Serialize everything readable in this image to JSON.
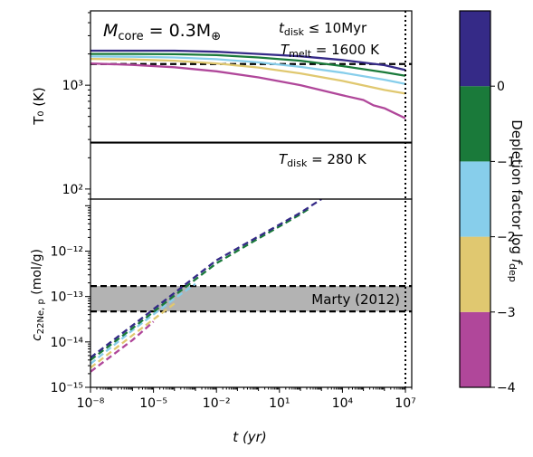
{
  "chart_data": [
    {
      "type": "line",
      "panel": "top",
      "ylabel": "T₀ (K)",
      "yscale": "log",
      "ylim": [
        80,
        5200
      ],
      "ytick_labels": [
        "10²",
        "10³"
      ],
      "annotation_core": "M",
      "annotation_core_sub": "core",
      "annotation_core_rest": " = 0.3M",
      "annotation_core_earth": "⊕",
      "annotation_disk_t": "t",
      "annotation_disk_t_sub": "disk",
      "annotation_disk_t_rest": " ≤ 10Myr",
      "annotation_melt": "T",
      "annotation_melt_sub": "melt",
      "annotation_melt_rest": " = 1600 K",
      "annotation_disk_T": "T",
      "annotation_disk_T_sub": "disk",
      "annotation_disk_T_rest": " = 280 K",
      "reference_lines": [
        {
          "label": "T_melt",
          "value": 1600,
          "style": "dashed"
        },
        {
          "label": "T_disk",
          "value": 280,
          "style": "solid"
        }
      ],
      "series": [
        {
          "log_f_dep": 0,
          "color": "#352a87",
          "x": [
            1e-08,
            1e-06,
            0.0001,
            0.01,
            1,
            100,
            10000.0,
            1000000.0,
            10000000.0
          ],
          "y": [
            2150,
            2150,
            2150,
            2100,
            2000,
            1900,
            1750,
            1560,
            1400
          ]
        },
        {
          "log_f_dep": -1,
          "color": "#1a7a3a",
          "x": [
            1e-08,
            1e-06,
            0.0001,
            0.01,
            1,
            100,
            10000.0,
            1000000.0,
            10000000.0
          ],
          "y": [
            2000,
            2000,
            1990,
            1950,
            1850,
            1720,
            1530,
            1330,
            1230
          ]
        },
        {
          "log_f_dep": -2,
          "color": "#87ceeb",
          "x": [
            1e-08,
            1e-06,
            0.0001,
            0.01,
            1,
            100,
            10000.0,
            1000000.0,
            10000000.0
          ],
          "y": [
            1890,
            1880,
            1850,
            1780,
            1660,
            1500,
            1320,
            1130,
            1030
          ]
        },
        {
          "log_f_dep": -3,
          "color": "#e0c870",
          "x": [
            1e-08,
            1e-06,
            0.0001,
            0.01,
            1,
            100,
            10000.0,
            1000000.0,
            10000000.0
          ],
          "y": [
            1790,
            1770,
            1720,
            1620,
            1480,
            1300,
            1100,
            900,
            830
          ]
        },
        {
          "log_f_dep": -4,
          "color": "#b0479a",
          "x": [
            1e-08,
            1e-06,
            0.0001,
            0.01,
            1,
            100,
            10000.0,
            100000.0,
            300000.0,
            1000000.0,
            3000000.0,
            10000000.0
          ],
          "y": [
            1620,
            1570,
            1490,
            1360,
            1190,
            1000,
            800,
            720,
            640,
            600,
            540,
            480
          ]
        }
      ]
    },
    {
      "type": "line",
      "panel": "bottom",
      "xlabel": "t (yr)",
      "ylabel_base": "c",
      "ylabel_sub": "22Ne, p",
      "ylabel_rest": " (mol/g)",
      "xscale": "log",
      "yscale": "log",
      "xlim": [
        1e-08,
        20000000.0
      ],
      "ylim": [
        1e-15,
        1.4e-11
      ],
      "xtick_labels": [
        "10⁻⁸",
        "10⁻⁵",
        "10⁻²",
        "10¹",
        "10⁴",
        "10⁷"
      ],
      "ytick_labels": [
        "10⁻¹⁵",
        "10⁻¹⁴",
        "10⁻¹³",
        "10⁻¹²"
      ],
      "band_label": "Marty (2012)",
      "band": [
        4.7e-14,
        1.7e-13
      ],
      "vertical_line": {
        "x": 10000000.0,
        "style": "dotted"
      },
      "series": [
        {
          "log_f_dep": 0,
          "color": "#352a87",
          "x": [
            1e-08,
            1e-06,
            0.0001,
            0.01,
            1,
            100,
            1000
          ],
          "y": [
            4.5e-15,
            2.3e-14,
            1.2e-13,
            6.3e-13,
            2.1e-12,
            7e-12,
            1.4e-11
          ]
        },
        {
          "log_f_dep": -1,
          "color": "#1a7a3a",
          "x": [
            1e-08,
            1e-06,
            0.0001,
            0.01,
            1,
            100,
            300
          ],
          "y": [
            4e-15,
            2e-14,
            1.05e-13,
            5.4e-13,
            1.9e-12,
            6.5e-12,
            9e-12
          ]
        },
        {
          "log_f_dep": -2,
          "color": "#87ceeb",
          "x": [
            1e-08,
            1e-06,
            0.0001,
            0.001
          ],
          "y": [
            3.3e-15,
            1.8e-14,
            9e-14,
            1.9e-13
          ]
        },
        {
          "log_f_dep": -3,
          "color": "#e0c870",
          "x": [
            1e-08,
            1e-06,
            0.0001
          ],
          "y": [
            2.7e-15,
            1.4e-14,
            7e-14
          ]
        },
        {
          "log_f_dep": -4,
          "color": "#b0479a",
          "x": [
            1e-08,
            1e-06,
            1e-05
          ],
          "y": [
            2.2e-15,
            1.1e-14,
            2.8e-14
          ]
        }
      ]
    }
  ],
  "colorbar": {
    "label_base": "Depletion factor log ",
    "label_f": "f",
    "label_sub": "dep",
    "range": [
      -4,
      1
    ],
    "tick_labels": [
      "−4",
      "−3",
      "−2",
      "−1",
      "0"
    ],
    "tick_values": [
      -4,
      -3,
      -2,
      -1,
      0
    ],
    "bands": [
      {
        "from": -4,
        "to": -3,
        "color": "#b0479a"
      },
      {
        "from": -3,
        "to": -2,
        "color": "#e0c870"
      },
      {
        "from": -2,
        "to": -1,
        "color": "#87ceeb"
      },
      {
        "from": -1,
        "to": 0,
        "color": "#1a7a3a"
      },
      {
        "from": 0,
        "to": 1,
        "color": "#352a87"
      }
    ]
  }
}
